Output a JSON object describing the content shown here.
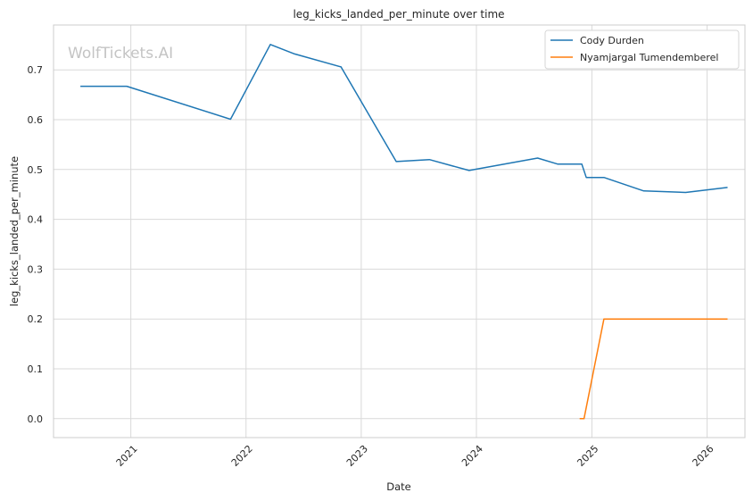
{
  "chart_data": {
    "type": "line",
    "title": "leg_kicks_landed_per_minute over time",
    "xlabel": "Date",
    "ylabel": "leg_kicks_landed_per_minute",
    "watermark": "WolfTickets.AI",
    "x_axis_kind": "date",
    "xlim": [
      "2020-05-01",
      "2026-05-01"
    ],
    "ylim": [
      -0.038,
      0.79
    ],
    "x_ticks": [
      "2021",
      "2022",
      "2023",
      "2024",
      "2025",
      "2026"
    ],
    "y_ticks": [
      0.0,
      0.1,
      0.2,
      0.3,
      0.4,
      0.5,
      0.6,
      0.7
    ],
    "y_tick_labels": [
      "0.0",
      "0.1",
      "0.2",
      "0.3",
      "0.4",
      "0.5",
      "0.6",
      "0.7"
    ],
    "grid": true,
    "legend_position": "top-right",
    "series": [
      {
        "name": "Cody Durden",
        "color": "#1f77b4",
        "points": [
          {
            "x": "2020-07-25",
            "y": 0.667
          },
          {
            "x": "2020-12-19",
            "y": 0.667
          },
          {
            "x": "2021-11-13",
            "y": 0.601
          },
          {
            "x": "2022-03-19",
            "y": 0.751
          },
          {
            "x": "2022-06-04",
            "y": 0.732
          },
          {
            "x": "2022-10-29",
            "y": 0.706
          },
          {
            "x": "2023-04-22",
            "y": 0.516
          },
          {
            "x": "2023-08-05",
            "y": 0.52
          },
          {
            "x": "2023-12-09",
            "y": 0.498
          },
          {
            "x": "2024-07-13",
            "y": 0.523
          },
          {
            "x": "2024-09-14",
            "y": 0.511
          },
          {
            "x": "2024-11-30",
            "y": 0.511
          },
          {
            "x": "2024-12-14",
            "y": 0.484
          },
          {
            "x": "2025-02-08",
            "y": 0.484
          },
          {
            "x": "2025-06-14",
            "y": 0.457
          },
          {
            "x": "2025-10-25",
            "y": 0.454
          },
          {
            "x": "2026-03-07",
            "y": 0.464
          }
        ]
      },
      {
        "name": "Nyamjargal Tumendemberel",
        "color": "#ff7f0e",
        "points": [
          {
            "x": "2024-11-23",
            "y": 0.0
          },
          {
            "x": "2024-12-07",
            "y": 0.0
          },
          {
            "x": "2025-02-08",
            "y": 0.2
          },
          {
            "x": "2026-03-07",
            "y": 0.2
          }
        ]
      }
    ]
  }
}
